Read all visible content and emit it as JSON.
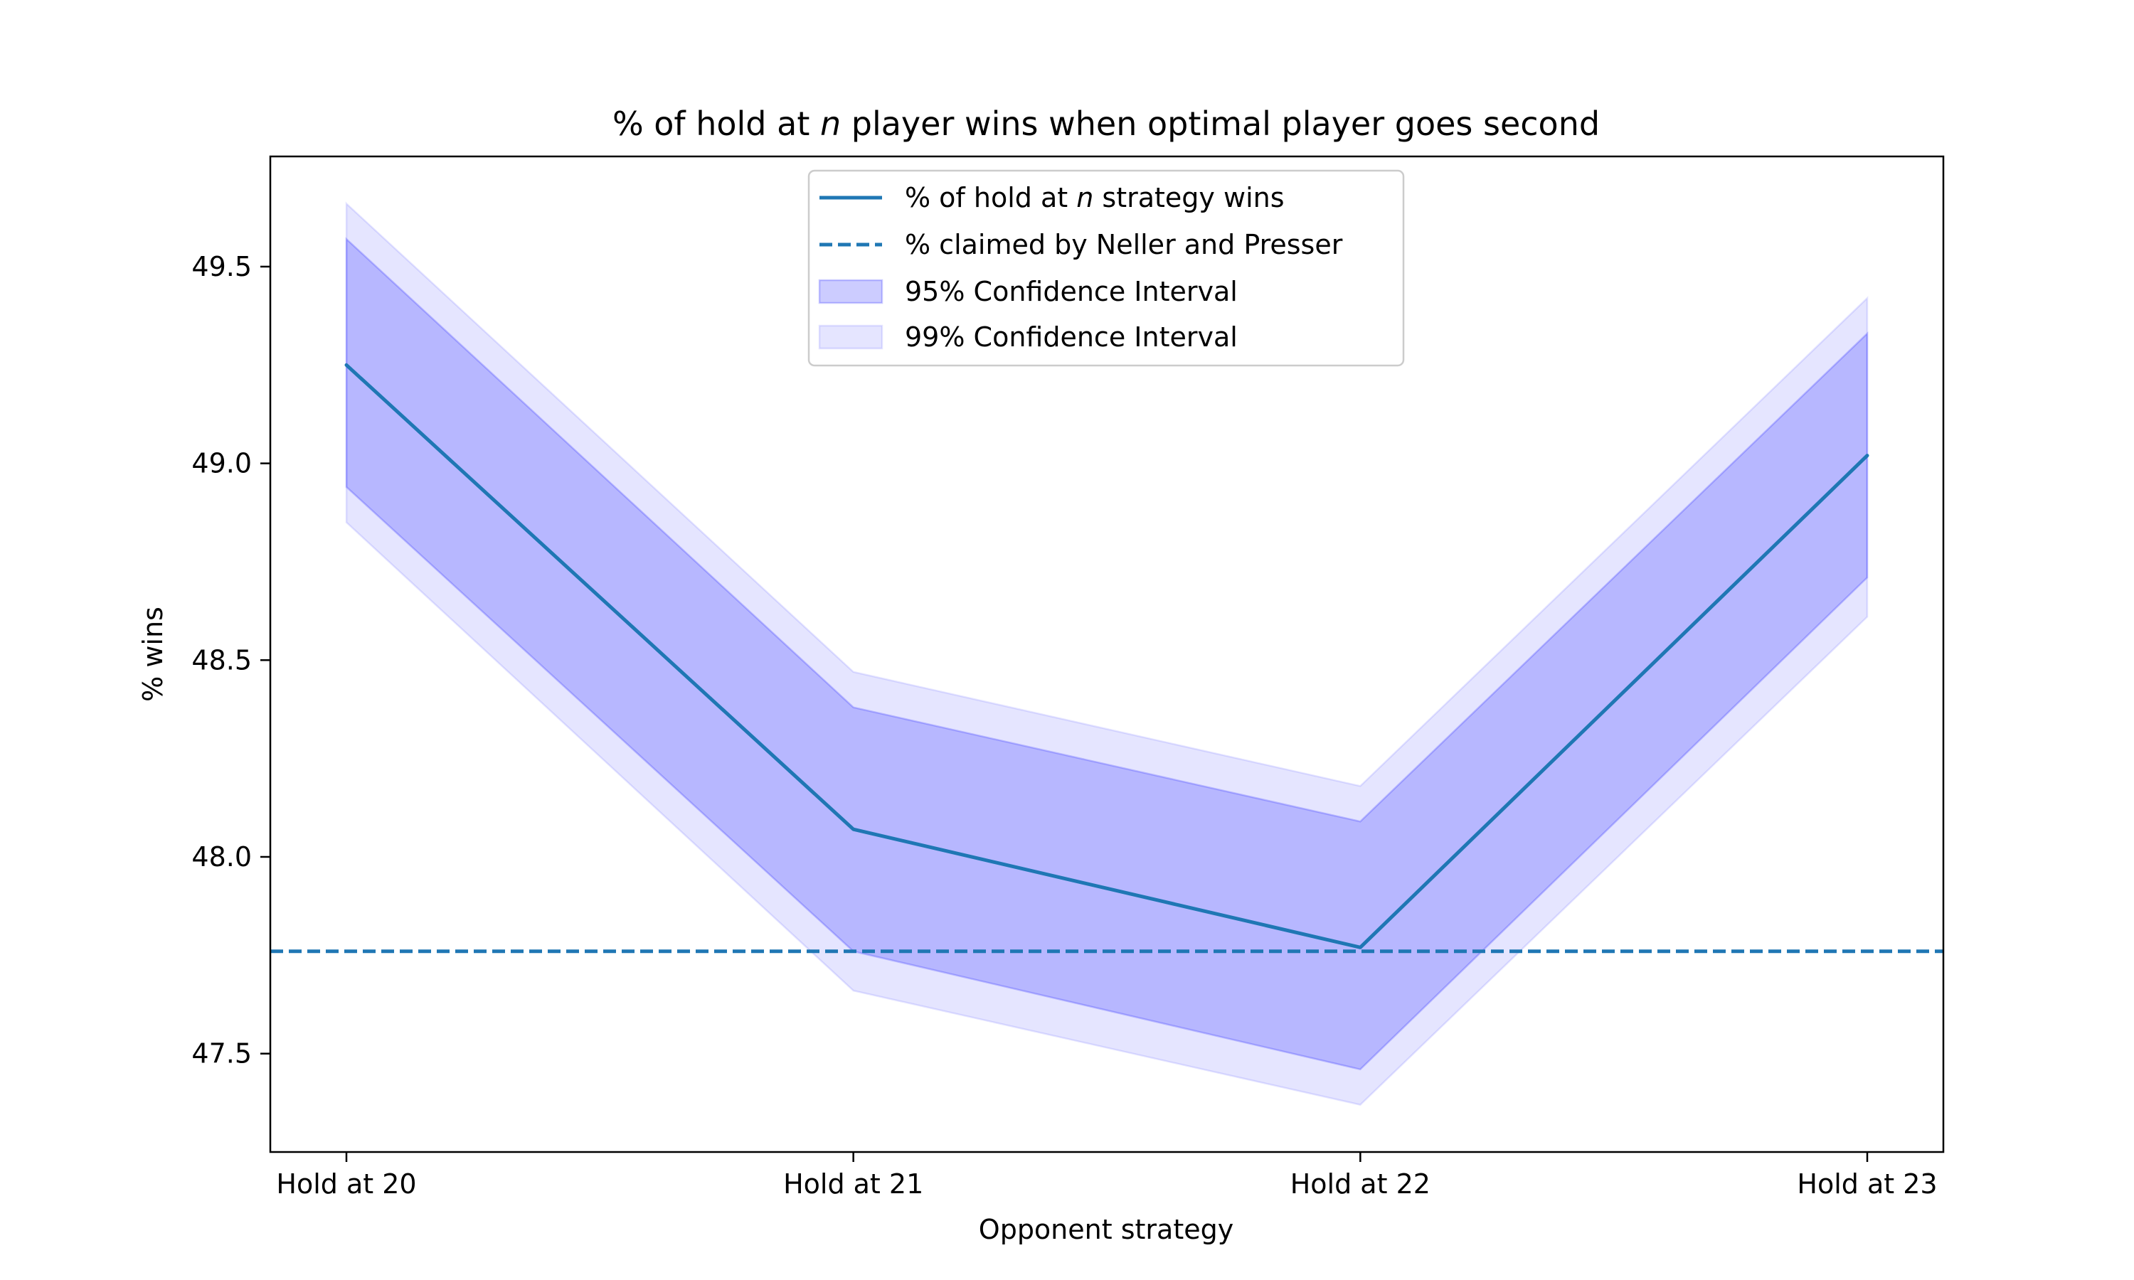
{
  "chart_data": {
    "type": "line",
    "title": {
      "before": "% of hold at ",
      "italic": "n",
      "after": " player wins when optimal player goes second"
    },
    "xlabel": "Opponent strategy",
    "ylabel": "% wins",
    "categories": [
      "Hold at 20",
      "Hold at 21",
      "Hold at 22",
      "Hold at 23"
    ],
    "yticks": [
      "47.5",
      "48.0",
      "48.5",
      "49.0",
      "49.5"
    ],
    "ylim": [
      47.25,
      49.78
    ],
    "grid": false,
    "legend_position": "top-center",
    "series": [
      {
        "name": "% of hold at n strategy wins",
        "values": [
          49.25,
          48.07,
          47.77,
          49.02
        ],
        "color": "#1f77b4",
        "style": "solid"
      }
    ],
    "reference_line": {
      "name": "% claimed by Neller and Presser",
      "value": 47.76,
      "color": "#1f77b4",
      "style": "dashed"
    },
    "bands": [
      {
        "name": "99% Confidence Interval",
        "lower": [
          48.85,
          47.66,
          47.37,
          48.61
        ],
        "upper": [
          49.66,
          48.47,
          48.18,
          49.42
        ],
        "color": "#0000ff",
        "opacity": 0.1
      },
      {
        "name": "95% Confidence Interval",
        "lower": [
          48.94,
          47.76,
          47.46,
          48.71
        ],
        "upper": [
          49.57,
          48.38,
          48.09,
          49.33
        ],
        "color": "#0000ff",
        "opacity": 0.2
      }
    ],
    "legend": [
      {
        "kind": "line",
        "before": "% of hold at ",
        "italic": "n",
        "after": " strategy wins"
      },
      {
        "kind": "dashed",
        "text": "% claimed by Neller and Presser"
      },
      {
        "kind": "band95",
        "text": "95% Confidence Interval"
      },
      {
        "kind": "band99",
        "text": "99% Confidence Interval"
      }
    ]
  }
}
